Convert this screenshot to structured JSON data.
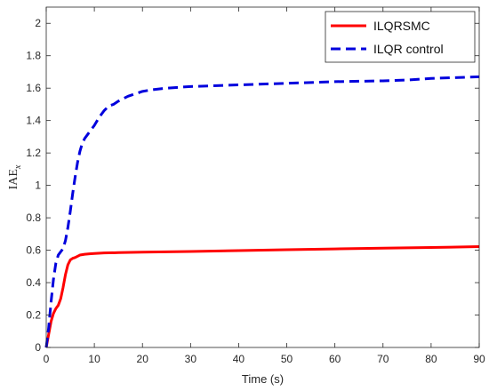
{
  "chart_data": {
    "type": "line",
    "xlabel": "Time (s)",
    "ylabel": {
      "main": "IAE",
      "sub": "x"
    },
    "xlim": [
      0,
      90
    ],
    "ylim": [
      0,
      2.1
    ],
    "xticks": [
      0,
      10,
      20,
      30,
      40,
      50,
      60,
      70,
      80,
      90
    ],
    "yticks": [
      0,
      0.2,
      0.4,
      0.6,
      0.8,
      1,
      1.2,
      1.4,
      1.6,
      1.8,
      2
    ],
    "grid": false,
    "legend_position": "top-right",
    "series": [
      {
        "name": "ILQRSMC",
        "color": "#ff0000",
        "style": "solid",
        "x": [
          0,
          0.5,
          1,
          1.5,
          2,
          2.5,
          3,
          3.5,
          4,
          4.5,
          5,
          5.5,
          6,
          7,
          8,
          9,
          10,
          12,
          15,
          20,
          30,
          40,
          50,
          60,
          70,
          80,
          90
        ],
        "y": [
          0,
          0.08,
          0.16,
          0.21,
          0.24,
          0.26,
          0.3,
          0.37,
          0.45,
          0.51,
          0.54,
          0.55,
          0.555,
          0.57,
          0.575,
          0.578,
          0.58,
          0.583,
          0.585,
          0.588,
          0.592,
          0.598,
          0.603,
          0.608,
          0.613,
          0.617,
          0.622
        ]
      },
      {
        "name": "ILQR control",
        "color": "#0000dd",
        "style": "dashed",
        "x": [
          0,
          0.5,
          1,
          1.5,
          2,
          2.5,
          3,
          3.5,
          4,
          4.5,
          5,
          5.5,
          6,
          6.5,
          7,
          7.5,
          8,
          9,
          10,
          11,
          12,
          13,
          14,
          15,
          17,
          19,
          20,
          22,
          25,
          30,
          40,
          50,
          60,
          70,
          75,
          80,
          90
        ],
        "y": [
          0,
          0.12,
          0.28,
          0.42,
          0.52,
          0.57,
          0.59,
          0.61,
          0.66,
          0.74,
          0.84,
          0.95,
          1.05,
          1.14,
          1.21,
          1.26,
          1.29,
          1.33,
          1.37,
          1.42,
          1.46,
          1.49,
          1.5,
          1.52,
          1.55,
          1.57,
          1.58,
          1.59,
          1.6,
          1.61,
          1.62,
          1.63,
          1.64,
          1.645,
          1.65,
          1.66,
          1.67
        ]
      }
    ]
  }
}
